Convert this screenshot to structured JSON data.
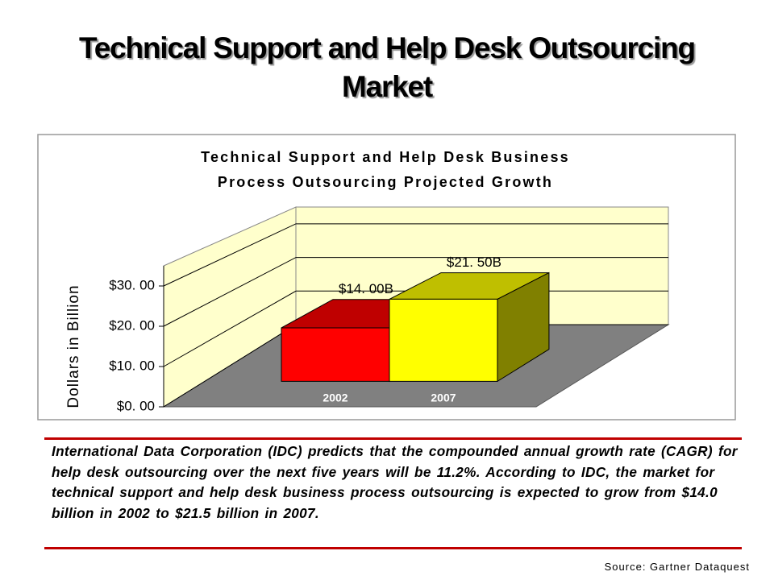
{
  "slide_title": "Technical Support and Help Desk Outsourcing Market",
  "chart_data": {
    "type": "bar3d",
    "title": [
      "Technical Support and Help Desk Business",
      "Process Outsourcing Projected Growth"
    ],
    "y_label": "Dollars in Billion",
    "categories": [
      "2002",
      "2007"
    ],
    "values": [
      14,
      21.5
    ],
    "value_labels": [
      "$14. 00B",
      "$21. 50B"
    ],
    "colors": [
      "#ff0000",
      "#ffff00"
    ],
    "ylim": [
      0,
      35
    ],
    "yticks": [
      {
        "value": 0,
        "label": "$0. 00"
      },
      {
        "value": 10,
        "label": "$10. 00"
      },
      {
        "value": 20,
        "label": "$20. 00"
      },
      {
        "value": 30,
        "label": "$30. 00"
      }
    ],
    "grid": true
  },
  "body": "International Data Corporation (IDC) predicts that the compounded annual growth rate (CAGR) for help desk outsourcing over the next five years will be 11.2%. According to IDC, the market for technical support and help desk business process outsourcing is expected to grow from $14.0 billion in 2002 to $21.5 billion in 2007.",
  "source": "Source: Gartner Dataquest"
}
